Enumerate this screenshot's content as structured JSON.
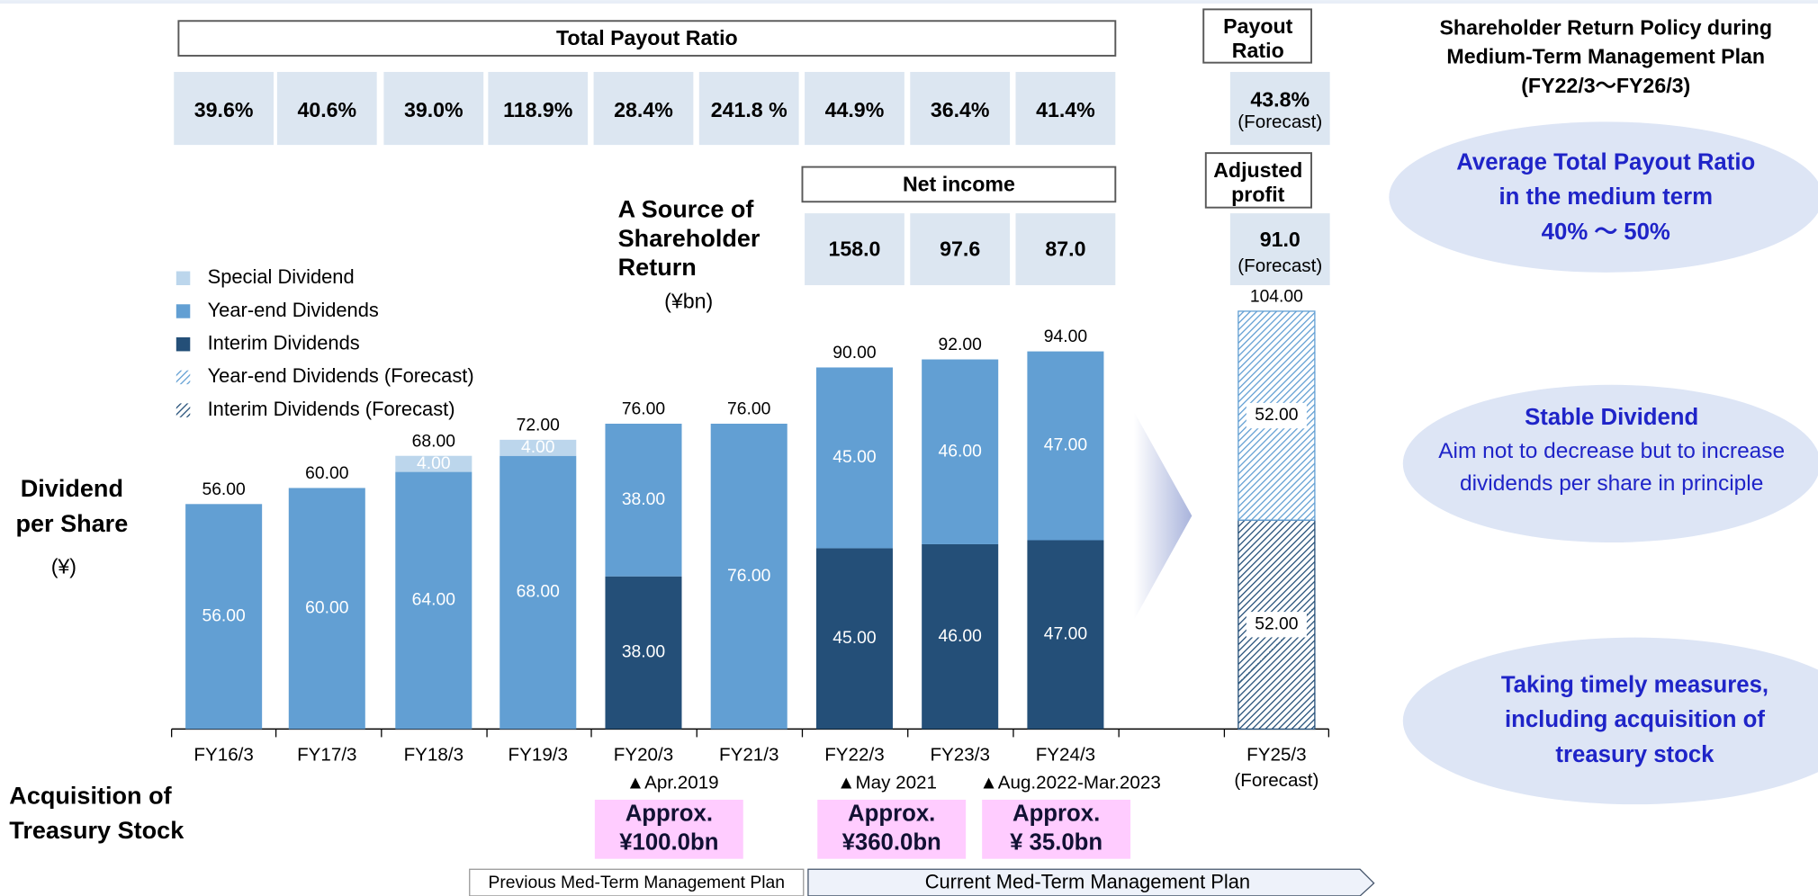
{
  "chart_data": {
    "type": "stacked_bar",
    "y_label": [
      "Dividend",
      "per Share"
    ],
    "y_unit": "(¥)",
    "categories": [
      "FY16/3",
      "FY17/3",
      "FY18/3",
      "FY19/3",
      "FY20/3",
      "FY21/3",
      "FY22/3",
      "FY23/3",
      "FY24/3",
      "FY25/3"
    ],
    "category_notes": [
      null,
      null,
      null,
      null,
      null,
      null,
      null,
      null,
      null,
      "(Forecast)"
    ],
    "ylim": [
      0,
      105
    ],
    "series": [
      {
        "name": "Interim Dividends",
        "color": "#244f78",
        "hatch": false,
        "values": [
          null,
          null,
          null,
          null,
          38,
          null,
          45,
          46,
          47,
          null
        ],
        "value_labels": [
          null,
          null,
          null,
          null,
          "38.00",
          null,
          "45.00",
          "46.00",
          "47.00",
          null
        ]
      },
      {
        "name": "Interim Dividends (Forecast)",
        "color": "#244f78",
        "hatch": true,
        "values": [
          null,
          null,
          null,
          null,
          null,
          null,
          null,
          null,
          null,
          52
        ],
        "value_labels": [
          null,
          null,
          null,
          null,
          null,
          null,
          null,
          null,
          null,
          "52.00"
        ]
      },
      {
        "name": "Year-end Dividends",
        "color": "#629fd3",
        "hatch": false,
        "values": [
          56,
          60,
          64,
          68,
          38,
          76,
          45,
          46,
          47,
          null
        ],
        "value_labels": [
          "56.00",
          "60.00",
          "64.00",
          "68.00",
          "38.00",
          "76.00",
          "45.00",
          "46.00",
          "47.00",
          null
        ]
      },
      {
        "name": "Year-end Dividends (Forecast)",
        "color": "#629fd3",
        "hatch": true,
        "values": [
          null,
          null,
          null,
          null,
          null,
          null,
          null,
          null,
          null,
          52
        ],
        "value_labels": [
          null,
          null,
          null,
          null,
          null,
          null,
          null,
          null,
          null,
          "52.00"
        ]
      },
      {
        "name": "Special Dividend",
        "color": "#bcd6ec",
        "hatch": false,
        "values": [
          null,
          null,
          4,
          4,
          null,
          null,
          null,
          null,
          null,
          null
        ],
        "value_labels": [
          null,
          null,
          "4.00",
          "4.00",
          null,
          null,
          null,
          null,
          null,
          null
        ]
      }
    ],
    "totals": [
      56,
      60,
      68,
      72,
      76,
      76,
      90,
      92,
      94,
      104
    ],
    "total_labels": [
      "56.00",
      "60.00",
      "68.00",
      "72.00",
      "76.00",
      "76.00",
      "90.00",
      "92.00",
      "94.00",
      "104.00"
    ]
  },
  "payout_ratio": {
    "title": "Total Payout Ratio",
    "labels": [
      "39.6%",
      "40.6%",
      "39.0%",
      "118.9%",
      "28.4%",
      "241.8 %",
      "44.9%",
      "36.4%",
      "41.4%"
    ],
    "forecast_title": [
      "Payout",
      "Ratio"
    ],
    "forecast_label": "43.8%",
    "forecast_note": "(Forecast)"
  },
  "source": {
    "title": [
      "A Source of",
      "Shareholder",
      "Return"
    ],
    "unit": "(¥bn)"
  },
  "net_income": {
    "title": "Net income",
    "labels": [
      "158.0",
      "97.6",
      "87.0"
    ],
    "forecast_title": [
      "Adjusted",
      "profit"
    ],
    "forecast_label": "91.0",
    "forecast_note": "(Forecast)"
  },
  "treasury": {
    "title": [
      "Acquisition of",
      "Treasury Stock"
    ],
    "items": [
      {
        "date": "▲Apr.2019",
        "amount": [
          "Approx.",
          "¥100.0bn"
        ]
      },
      {
        "date": "▲May 2021",
        "amount": [
          "Approx.",
          "¥360.0bn"
        ]
      },
      {
        "date": "▲Aug.2022-Mar.2023",
        "amount": [
          "Approx.",
          "¥ 35.0bn"
        ]
      }
    ]
  },
  "plans": [
    "Previous Med-Term Management Plan",
    "Current Med-Term Management Plan"
  ],
  "policy": {
    "title": [
      "Shareholder Return Policy during",
      "Medium-Term Management Plan",
      "(FY22/3～FY26/3)"
    ],
    "items": [
      {
        "heading": [
          "Average Total Payout Ratio",
          "in the medium term",
          "40% ～ 50%"
        ],
        "text": []
      },
      {
        "heading": [
          "Stable Dividend"
        ],
        "text": [
          "Aim not to decrease but to increase",
          "dividends per share in principle"
        ]
      },
      {
        "heading": [
          "Taking timely measures,",
          "including acquisition of",
          "treasury stock"
        ],
        "text": []
      }
    ]
  }
}
